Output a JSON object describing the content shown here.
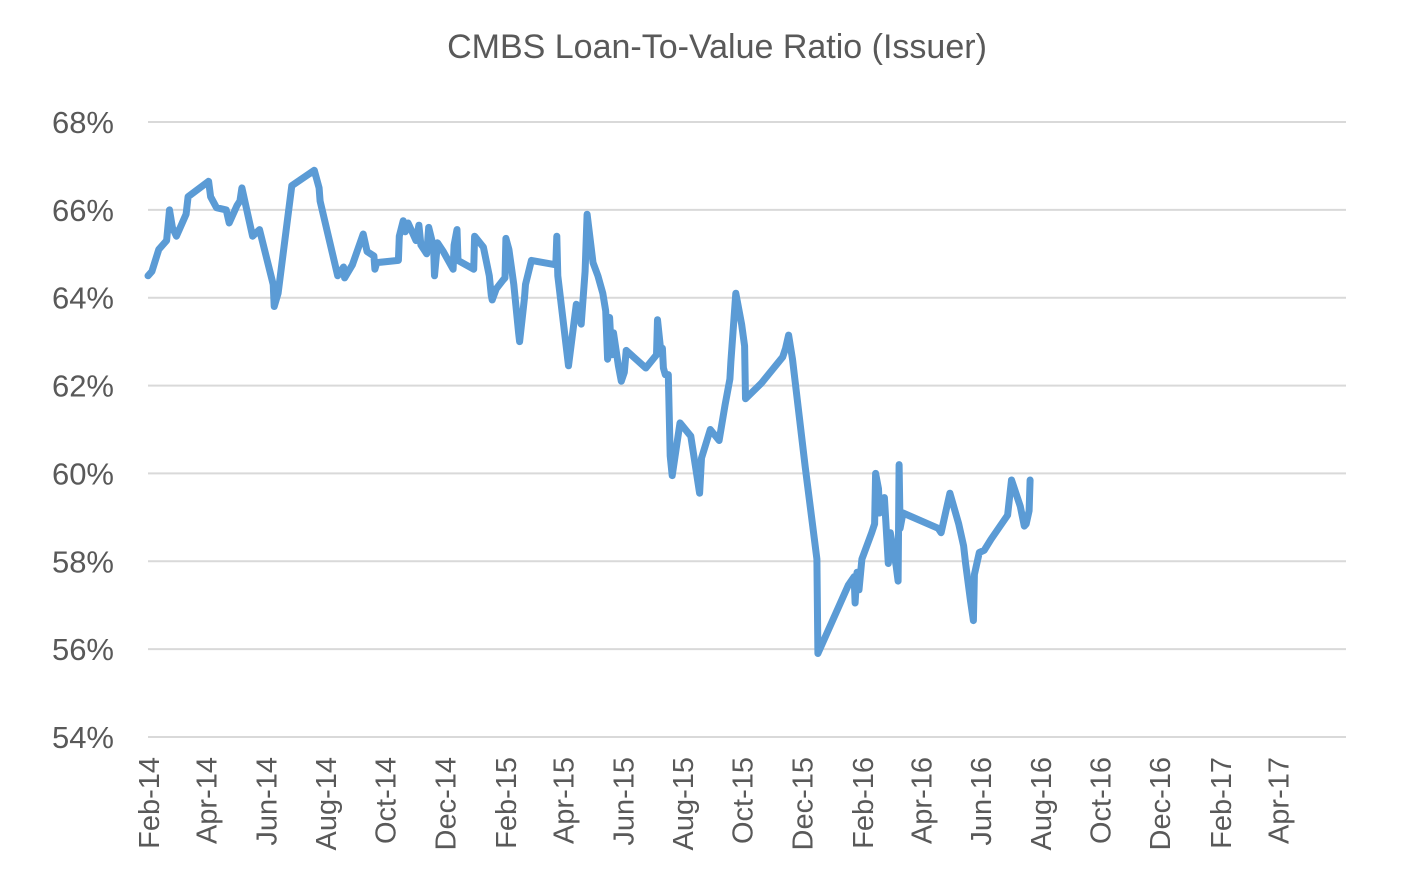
{
  "chart_data": {
    "type": "line",
    "title": "CMBS Loan-To-Value Ratio (Issuer)",
    "xlabel": "",
    "ylabel": "",
    "ylim": [
      54,
      68
    ],
    "y_ticks": [
      54,
      56,
      58,
      60,
      62,
      64,
      66,
      68
    ],
    "y_tick_labels": [
      "54%",
      "56%",
      "58%",
      "60%",
      "62%",
      "64%",
      "66%",
      "68%"
    ],
    "x_range": [
      "2014-02-01",
      "2017-06-10"
    ],
    "x_ticks": [
      "2014-02-01",
      "2014-04-01",
      "2014-06-01",
      "2014-08-01",
      "2014-10-01",
      "2014-12-01",
      "2015-02-01",
      "2015-04-01",
      "2015-06-01",
      "2015-08-01",
      "2015-10-01",
      "2015-12-01",
      "2016-02-01",
      "2016-04-01",
      "2016-06-01",
      "2016-08-01",
      "2016-10-01",
      "2016-12-01",
      "2017-02-01",
      "2017-04-01"
    ],
    "x_tick_labels": [
      "Feb-14",
      "Apr-14",
      "Jun-14",
      "Aug-14",
      "Oct-14",
      "Dec-14",
      "Feb-15",
      "Apr-15",
      "Jun-15",
      "Aug-15",
      "Oct-15",
      "Dec-15",
      "Feb-16",
      "Apr-16",
      "Jun-16",
      "Aug-16",
      "Oct-16",
      "Dec-16",
      "Feb-17",
      "Apr-17"
    ],
    "grid": true,
    "legend": "none",
    "series": [
      {
        "color": "#5b9bd5",
        "points": [
          [
            "2014-02-01",
            64.5
          ],
          [
            "2014-02-05",
            64.6
          ],
          [
            "2014-02-12",
            65.1
          ],
          [
            "2014-02-20",
            65.3
          ],
          [
            "2014-02-23",
            66.0
          ],
          [
            "2014-02-26",
            65.6
          ],
          [
            "2014-03-02",
            65.4
          ],
          [
            "2014-03-12",
            65.9
          ],
          [
            "2014-03-14",
            66.3
          ],
          [
            "2014-04-04",
            66.65
          ],
          [
            "2014-04-06",
            66.3
          ],
          [
            "2014-04-12",
            66.05
          ],
          [
            "2014-04-22",
            66.0
          ],
          [
            "2014-04-25",
            65.7
          ],
          [
            "2014-05-03",
            66.1
          ],
          [
            "2014-05-06",
            66.2
          ],
          [
            "2014-05-08",
            66.5
          ],
          [
            "2014-05-19",
            65.4
          ],
          [
            "2014-05-26",
            65.55
          ],
          [
            "2014-06-09",
            64.3
          ],
          [
            "2014-06-10",
            63.8
          ],
          [
            "2014-06-14",
            64.1
          ],
          [
            "2014-06-28",
            66.55
          ],
          [
            "2014-07-21",
            66.9
          ],
          [
            "2014-07-26",
            66.5
          ],
          [
            "2014-07-27",
            66.2
          ],
          [
            "2014-08-14",
            64.5
          ],
          [
            "2014-08-20",
            64.7
          ],
          [
            "2014-08-21",
            64.45
          ],
          [
            "2014-08-29",
            64.75
          ],
          [
            "2014-09-09",
            65.45
          ],
          [
            "2014-09-13",
            65.05
          ],
          [
            "2014-09-20",
            64.95
          ],
          [
            "2014-09-21",
            64.65
          ],
          [
            "2014-09-23",
            64.8
          ],
          [
            "2014-10-15",
            64.85
          ],
          [
            "2014-10-16",
            65.4
          ],
          [
            "2014-10-20",
            65.75
          ],
          [
            "2014-10-22",
            65.5
          ],
          [
            "2014-10-25",
            65.7
          ],
          [
            "2014-11-02",
            65.3
          ],
          [
            "2014-11-05",
            65.65
          ],
          [
            "2014-11-07",
            65.2
          ],
          [
            "2014-11-13",
            65.0
          ],
          [
            "2014-11-15",
            65.6
          ],
          [
            "2014-11-20",
            65.15
          ],
          [
            "2014-11-21",
            64.5
          ],
          [
            "2014-11-24",
            65.25
          ],
          [
            "2014-11-30",
            65.05
          ],
          [
            "2014-12-10",
            64.65
          ],
          [
            "2014-12-11",
            65.2
          ],
          [
            "2014-12-14",
            65.55
          ],
          [
            "2014-12-15",
            64.85
          ],
          [
            "2014-12-31",
            64.65
          ],
          [
            "2015-01-01",
            65.4
          ],
          [
            "2015-01-10",
            65.15
          ],
          [
            "2015-01-16",
            64.5
          ],
          [
            "2015-01-18",
            64.05
          ],
          [
            "2015-01-19",
            63.95
          ],
          [
            "2015-01-23",
            64.2
          ],
          [
            "2015-01-30",
            64.4
          ],
          [
            "2015-02-01",
            64.45
          ],
          [
            "2015-02-02",
            65.35
          ],
          [
            "2015-02-05",
            65.1
          ],
          [
            "2015-02-10",
            64.3
          ],
          [
            "2015-02-15",
            63.2
          ],
          [
            "2015-02-16",
            63.0
          ],
          [
            "2015-02-21",
            64.0
          ],
          [
            "2015-02-22",
            64.3
          ],
          [
            "2015-02-28",
            64.85
          ],
          [
            "2015-03-25",
            64.75
          ],
          [
            "2015-03-26",
            65.4
          ],
          [
            "2015-03-27",
            64.5
          ],
          [
            "2015-04-07",
            62.45
          ],
          [
            "2015-04-15",
            63.85
          ],
          [
            "2015-04-20",
            63.4
          ],
          [
            "2015-04-24",
            64.6
          ],
          [
            "2015-04-26",
            65.9
          ],
          [
            "2015-05-02",
            64.8
          ],
          [
            "2015-05-07",
            64.5
          ],
          [
            "2015-05-12",
            64.1
          ],
          [
            "2015-05-15",
            63.7
          ],
          [
            "2015-05-17",
            62.6
          ],
          [
            "2015-05-19",
            63.55
          ],
          [
            "2015-05-21",
            62.7
          ],
          [
            "2015-05-23",
            63.2
          ],
          [
            "2015-05-28",
            62.45
          ],
          [
            "2015-05-31",
            62.1
          ],
          [
            "2015-06-03",
            62.3
          ],
          [
            "2015-06-05",
            62.8
          ],
          [
            "2015-06-25",
            62.4
          ],
          [
            "2015-07-06",
            62.7
          ],
          [
            "2015-07-07",
            63.5
          ],
          [
            "2015-07-10",
            62.85
          ],
          [
            "2015-07-12",
            62.85
          ],
          [
            "2015-07-13",
            62.4
          ],
          [
            "2015-07-15",
            62.25
          ],
          [
            "2015-07-18",
            62.25
          ],
          [
            "2015-07-20",
            60.4
          ],
          [
            "2015-07-22",
            59.95
          ],
          [
            "2015-07-30",
            61.15
          ],
          [
            "2015-08-10",
            60.85
          ],
          [
            "2015-08-19",
            59.55
          ],
          [
            "2015-08-21",
            60.35
          ],
          [
            "2015-08-30",
            61.0
          ],
          [
            "2015-09-08",
            60.75
          ],
          [
            "2015-09-14",
            61.55
          ],
          [
            "2015-09-19",
            62.15
          ],
          [
            "2015-09-20",
            62.55
          ],
          [
            "2015-09-25",
            64.1
          ],
          [
            "2015-10-01",
            63.4
          ],
          [
            "2015-10-04",
            62.9
          ],
          [
            "2015-10-05",
            61.7
          ],
          [
            "2015-10-21",
            62.05
          ],
          [
            "2015-11-12",
            62.65
          ],
          [
            "2015-11-15",
            62.85
          ],
          [
            "2015-11-18",
            63.15
          ],
          [
            "2015-11-22",
            62.6
          ],
          [
            "2015-12-05",
            60.15
          ],
          [
            "2015-12-17",
            58.05
          ],
          [
            "2015-12-18",
            55.9
          ],
          [
            "2016-01-18",
            57.45
          ],
          [
            "2016-01-24",
            57.65
          ],
          [
            "2016-01-25",
            57.05
          ],
          [
            "2016-01-26",
            57.4
          ],
          [
            "2016-01-27",
            57.75
          ],
          [
            "2016-01-29",
            57.35
          ],
          [
            "2016-02-01",
            58.05
          ],
          [
            "2016-02-11",
            58.65
          ],
          [
            "2016-02-14",
            58.85
          ],
          [
            "2016-02-15",
            60.0
          ],
          [
            "2016-02-18",
            59.65
          ],
          [
            "2016-02-19",
            59.1
          ],
          [
            "2016-02-21",
            59.4
          ],
          [
            "2016-02-24",
            59.45
          ],
          [
            "2016-02-28",
            57.95
          ],
          [
            "2016-03-01",
            58.65
          ],
          [
            "2016-03-07",
            57.9
          ],
          [
            "2016-03-09",
            57.55
          ],
          [
            "2016-03-10",
            60.2
          ],
          [
            "2016-03-11",
            58.75
          ],
          [
            "2016-03-14",
            59.1
          ],
          [
            "2016-04-19",
            58.75
          ],
          [
            "2016-04-22",
            58.65
          ],
          [
            "2016-05-01",
            59.55
          ],
          [
            "2016-05-10",
            58.85
          ],
          [
            "2016-05-15",
            58.35
          ],
          [
            "2016-05-17",
            57.95
          ],
          [
            "2016-05-22",
            57.1
          ],
          [
            "2016-05-25",
            56.65
          ],
          [
            "2016-05-26",
            57.7
          ],
          [
            "2016-05-31",
            58.2
          ],
          [
            "2016-06-05",
            58.25
          ],
          [
            "2016-06-12",
            58.5
          ],
          [
            "2016-06-29",
            59.05
          ],
          [
            "2016-07-03",
            59.85
          ],
          [
            "2016-07-12",
            59.25
          ],
          [
            "2016-07-16",
            58.8
          ],
          [
            "2016-07-18",
            58.85
          ],
          [
            "2016-07-21",
            59.15
          ],
          [
            "2016-07-22",
            59.85
          ]
        ]
      }
    ]
  }
}
